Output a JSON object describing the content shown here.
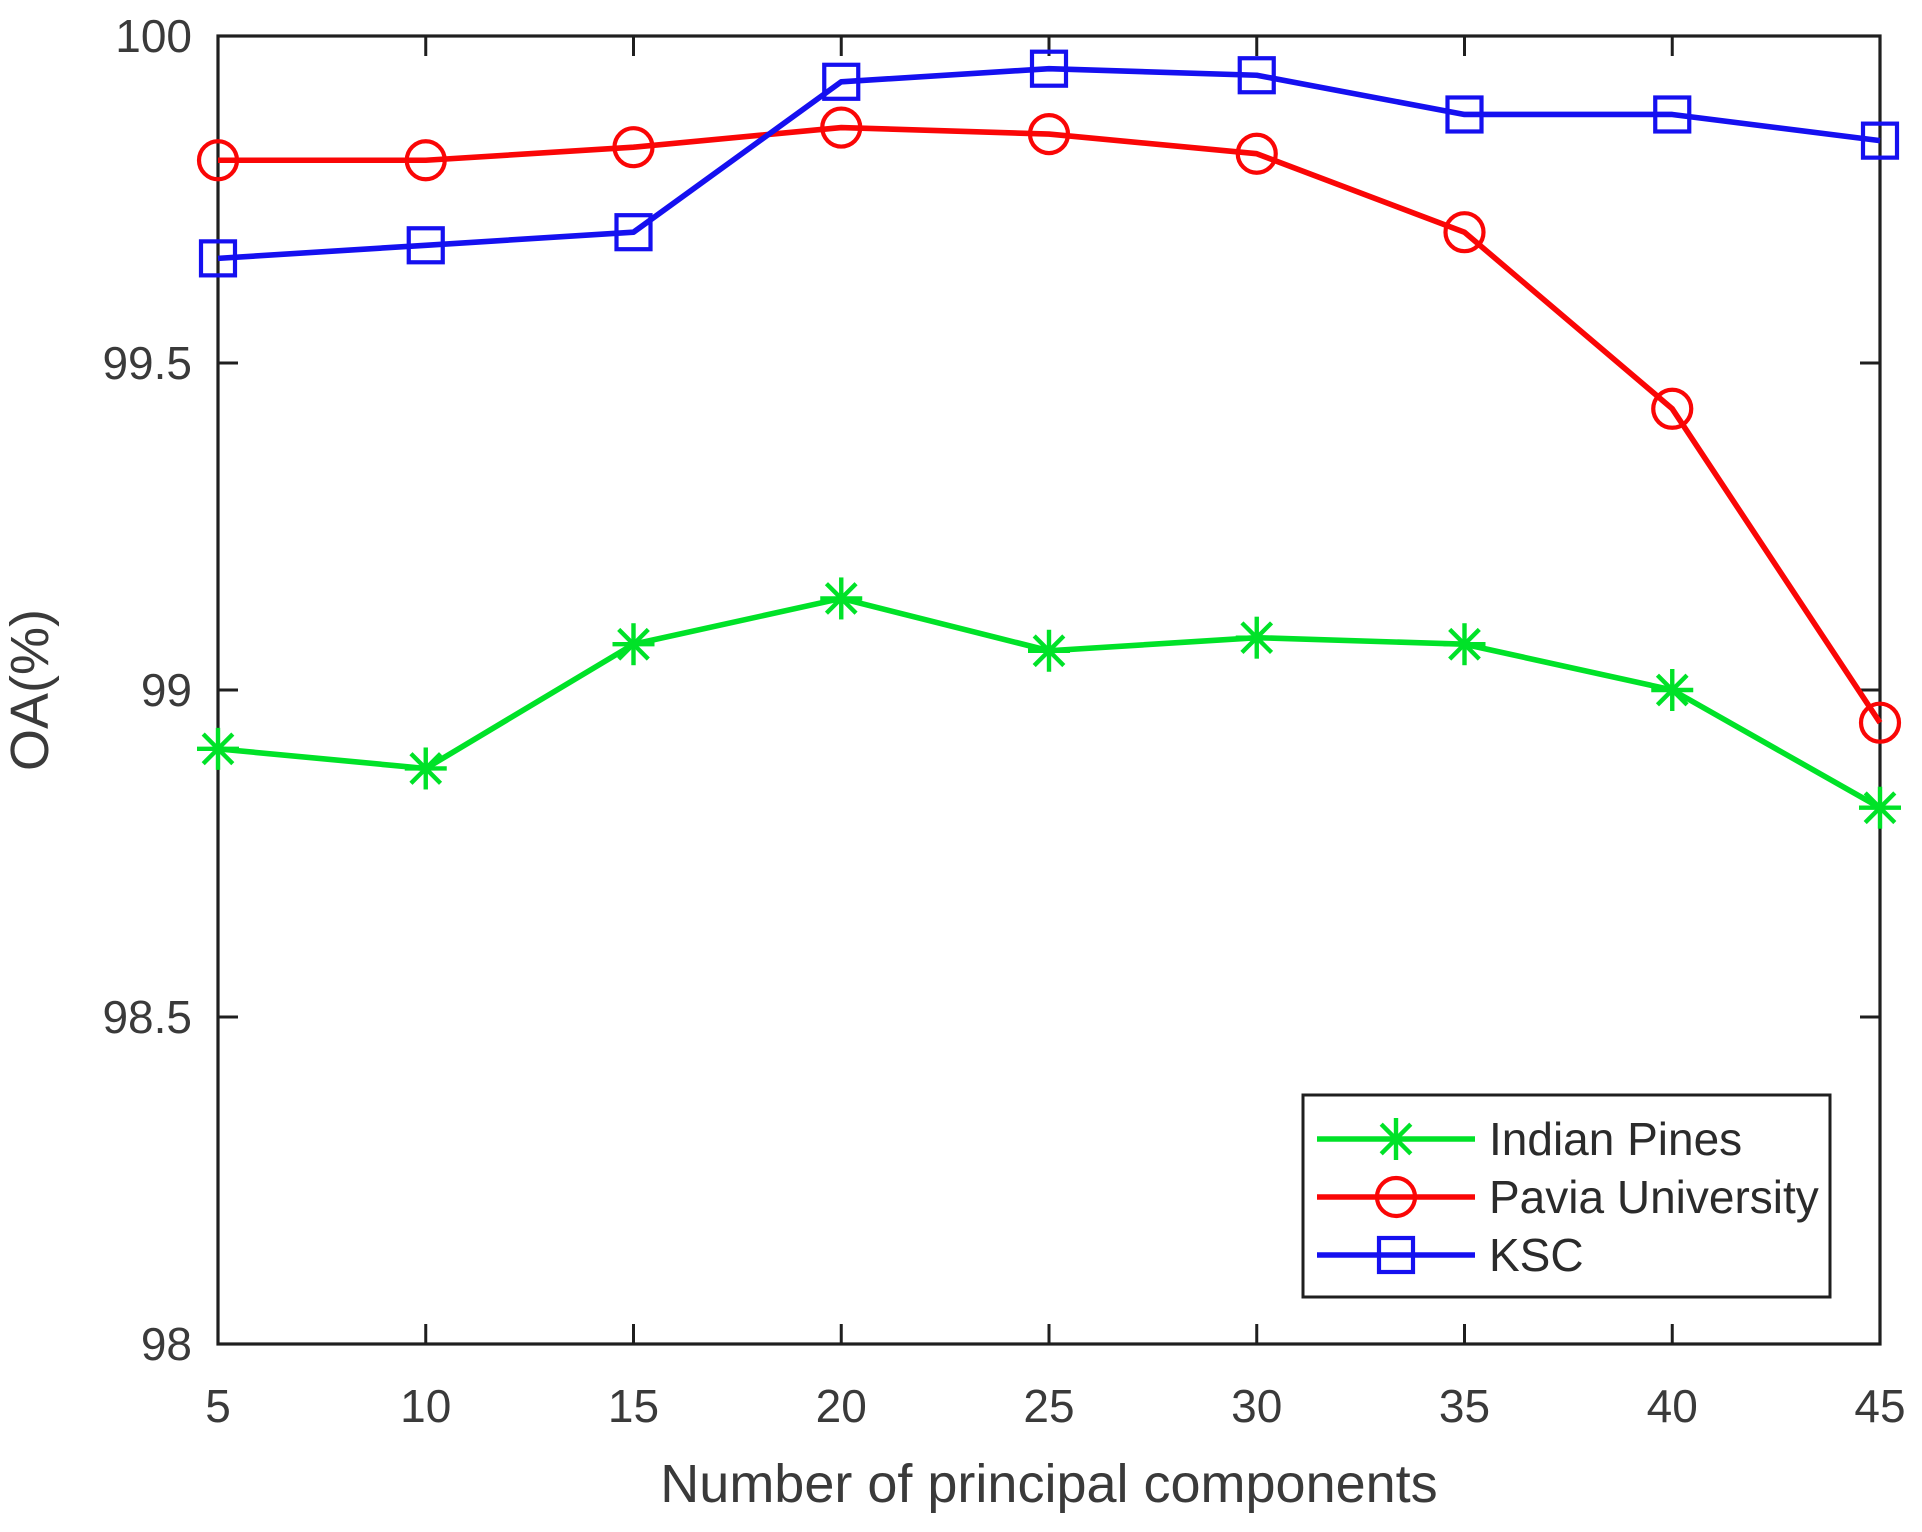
{
  "chart_data": {
    "type": "line",
    "title": "",
    "xlabel": "Number of principal components",
    "ylabel": "OA(%)",
    "xlim": [
      5,
      45
    ],
    "ylim": [
      98,
      100
    ],
    "xticks": [
      5,
      10,
      15,
      20,
      25,
      30,
      35,
      40,
      45
    ],
    "xtick_labels": [
      "5",
      "10",
      "15",
      "20",
      "25",
      "30",
      "35",
      "40",
      "45"
    ],
    "yticks": [
      98,
      98.5,
      99,
      99.5,
      100
    ],
    "ytick_labels": [
      "98",
      "98.5",
      "99",
      "99.5",
      "100"
    ],
    "grid": false,
    "legend_position": "bottom-right",
    "x": [
      5,
      10,
      15,
      20,
      25,
      30,
      35,
      40,
      45
    ],
    "series": [
      {
        "name": "Indian Pines",
        "color": "#00e228",
        "marker": "asterisk",
        "values": [
          98.91,
          98.88,
          99.07,
          99.14,
          99.06,
          99.08,
          99.07,
          99.0,
          98.82
        ]
      },
      {
        "name": "Pavia University",
        "color": "#fa0606",
        "marker": "circle",
        "values": [
          99.81,
          99.81,
          99.83,
          99.86,
          99.85,
          99.82,
          99.7,
          99.43,
          98.95
        ]
      },
      {
        "name": "KSC",
        "color": "#1510f0",
        "marker": "square",
        "values": [
          99.66,
          99.68,
          99.7,
          99.93,
          99.95,
          99.94,
          99.88,
          99.88,
          99.84
        ]
      }
    ],
    "axis_color": "#1f1f1f",
    "text_color": "#3a3a3a",
    "background": "#ffffff"
  }
}
